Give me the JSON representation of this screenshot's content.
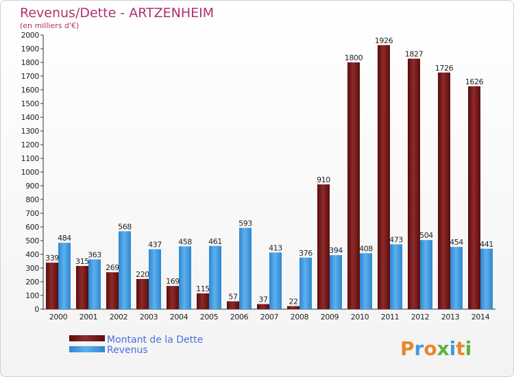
{
  "title": "Revenus/Dette - ARTZENHEIM",
  "subtitle": "(en milliers d'€)",
  "logo": "Proxiti",
  "colors": {
    "debt": "#7a1a1a",
    "revenue": "#3f9be0",
    "title": "#b0306b",
    "legend_text": "#4a6fe0"
  },
  "chart_data": {
    "type": "bar",
    "categories": [
      "2000",
      "2001",
      "2002",
      "2003",
      "2004",
      "2005",
      "2006",
      "2007",
      "2008",
      "2009",
      "2010",
      "2011",
      "2012",
      "2013",
      "2014"
    ],
    "series": [
      {
        "name": "Montant de la Dette",
        "values": [
          339,
          315,
          269,
          220,
          169,
          115,
          57,
          37,
          22,
          910,
          1800,
          1926,
          1827,
          1726,
          1626
        ]
      },
      {
        "name": "Revenus",
        "values": [
          484,
          363,
          568,
          437,
          458,
          461,
          593,
          413,
          376,
          394,
          408,
          473,
          504,
          454,
          441
        ]
      }
    ],
    "ylim": [
      0,
      2000
    ],
    "yticks": [
      0,
      100,
      200,
      300,
      400,
      500,
      600,
      700,
      800,
      900,
      1000,
      1100,
      1200,
      1300,
      1400,
      1500,
      1600,
      1700,
      1800,
      1900,
      2000
    ],
    "legend": "bottom-left",
    "grid": false
  }
}
